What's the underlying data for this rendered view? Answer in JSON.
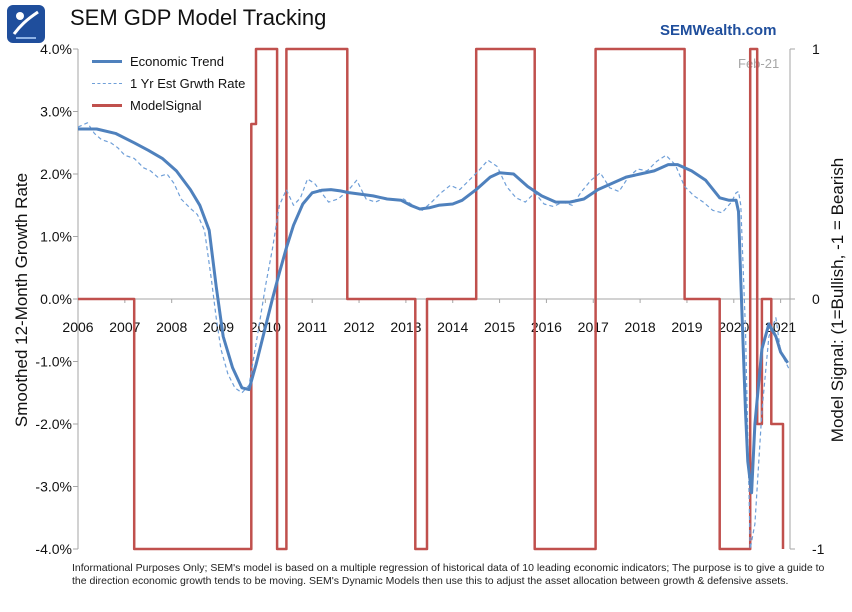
{
  "header": {
    "title": "SEM GDP Model Tracking",
    "brand": "SEMWealth.com",
    "logo": "sem-logo-icon",
    "as_of": "Feb-21"
  },
  "footnote": "Informational Purposes Only; SEM's model is based on a multiple regression of historical data of 10 leading economic indicators; The purpose is to give a guide to the direction economic growth tends to be moving. SEM's Dynamic Models then use this to adjust the asset allocation between growth & defensive assets.",
  "colors": {
    "economic_trend": "#4f81bd",
    "est_growth": "#6f9fd8",
    "model_signal": "#c0504d",
    "axis": "#a6a6a6"
  },
  "chart_data": {
    "type": "line",
    "x_tick_labels": [
      "2006",
      "2007",
      "2008",
      "2009",
      "2010",
      "2011",
      "2012",
      "2013",
      "2014",
      "2015",
      "2016",
      "2017",
      "2018",
      "2019",
      "2020",
      "2021"
    ],
    "xlim": [
      2006.0,
      2021.2
    ],
    "y_left": {
      "label": "Smoothed 12-Month Growth Rate",
      "ticks": [
        "4.0%",
        "3.0%",
        "2.0%",
        "1.0%",
        "0.0%",
        "-1.0%",
        "-2.0%",
        "-3.0%",
        "-4.0%"
      ],
      "ylim": [
        -4.0,
        4.0
      ]
    },
    "y_right": {
      "label": "Model Signal: (1=Bullish, -1 = Bearish",
      "ticks": [
        "1",
        "0",
        "-1"
      ],
      "ylim": [
        -1,
        1
      ]
    },
    "series": [
      {
        "name": "Economic Trend",
        "axis": "left",
        "style": "solid",
        "x": [
          2006.0,
          2006.4,
          2006.8,
          2007.2,
          2007.5,
          2007.8,
          2008.1,
          2008.4,
          2008.6,
          2008.8,
          2008.95,
          2009.1,
          2009.3,
          2009.5,
          2009.65,
          2009.8,
          2010.0,
          2010.15,
          2010.3,
          2010.45,
          2010.6,
          2010.8,
          2011.0,
          2011.2,
          2011.4,
          2011.6,
          2011.8,
          2012.0,
          2012.3,
          2012.6,
          2012.9,
          2013.1,
          2013.3,
          2013.5,
          2013.7,
          2014.0,
          2014.2,
          2014.5,
          2014.8,
          2015.0,
          2015.3,
          2015.6,
          2015.9,
          2016.2,
          2016.5,
          2016.8,
          2017.1,
          2017.4,
          2017.7,
          2018.0,
          2018.3,
          2018.6,
          2018.8,
          2019.1,
          2019.4,
          2019.7,
          2019.9,
          2020.05,
          2020.1,
          2020.15,
          2020.25,
          2020.3,
          2020.38,
          2020.45,
          2020.6,
          2020.75,
          2020.9,
          2021.0,
          2021.15
        ],
        "values": [
          2.72,
          2.72,
          2.65,
          2.5,
          2.38,
          2.25,
          2.05,
          1.75,
          1.5,
          1.1,
          0.2,
          -0.6,
          -1.1,
          -1.42,
          -1.45,
          -1.05,
          -0.45,
          0.0,
          0.42,
          0.82,
          1.18,
          1.52,
          1.7,
          1.74,
          1.75,
          1.73,
          1.7,
          1.68,
          1.65,
          1.6,
          1.58,
          1.5,
          1.44,
          1.46,
          1.5,
          1.52,
          1.58,
          1.75,
          1.95,
          2.02,
          2.0,
          1.8,
          1.65,
          1.55,
          1.55,
          1.6,
          1.75,
          1.85,
          1.95,
          2.0,
          2.05,
          2.15,
          2.15,
          2.05,
          1.9,
          1.62,
          1.58,
          1.58,
          1.4,
          0.3,
          -1.8,
          -2.6,
          -3.1,
          -2.0,
          -0.8,
          -0.4,
          -0.6,
          -0.85,
          -1.02
        ]
      },
      {
        "name": "1 Yr Est Grwth Rate",
        "axis": "left",
        "style": "dashed",
        "x": [
          2006.0,
          2006.2,
          2006.35,
          2006.5,
          2006.7,
          2006.85,
          2007.0,
          2007.2,
          2007.4,
          2007.55,
          2007.7,
          2007.9,
          2008.05,
          2008.2,
          2008.4,
          2008.55,
          2008.7,
          2008.85,
          2008.95,
          2009.05,
          2009.2,
          2009.35,
          2009.5,
          2009.65,
          2009.85,
          2010.0,
          2010.15,
          2010.3,
          2010.45,
          2010.6,
          2010.75,
          2010.9,
          2011.05,
          2011.2,
          2011.35,
          2011.55,
          2011.75,
          2011.95,
          2012.15,
          2012.35,
          2012.55,
          2012.75,
          2012.95,
          2013.15,
          2013.35,
          2013.55,
          2013.75,
          2013.95,
          2014.15,
          2014.35,
          2014.55,
          2014.75,
          2014.95,
          2015.15,
          2015.35,
          2015.55,
          2015.75,
          2015.95,
          2016.15,
          2016.35,
          2016.55,
          2016.75,
          2016.95,
          2017.15,
          2017.35,
          2017.55,
          2017.75,
          2017.95,
          2018.15,
          2018.35,
          2018.55,
          2018.75,
          2018.95,
          2019.15,
          2019.35,
          2019.55,
          2019.75,
          2019.95,
          2020.05,
          2020.1,
          2020.15,
          2020.25,
          2020.35,
          2020.45,
          2020.6,
          2020.75,
          2020.9,
          2021.0,
          2021.1,
          2021.2
        ],
        "values": [
          2.75,
          2.82,
          2.65,
          2.55,
          2.5,
          2.42,
          2.3,
          2.25,
          2.1,
          2.05,
          1.95,
          2.0,
          1.85,
          1.6,
          1.45,
          1.35,
          1.1,
          0.3,
          -0.3,
          -0.8,
          -1.2,
          -1.42,
          -1.5,
          -1.38,
          -0.5,
          0.2,
          0.8,
          1.5,
          1.75,
          1.5,
          1.62,
          1.92,
          1.85,
          1.7,
          1.55,
          1.6,
          1.72,
          1.9,
          1.6,
          1.55,
          1.62,
          1.58,
          1.6,
          1.5,
          1.42,
          1.55,
          1.7,
          1.82,
          1.75,
          1.9,
          2.05,
          2.22,
          2.12,
          1.8,
          1.62,
          1.55,
          1.7,
          1.52,
          1.48,
          1.55,
          1.5,
          1.72,
          1.9,
          2.02,
          1.78,
          1.72,
          1.95,
          2.08,
          2.05,
          2.2,
          2.3,
          2.15,
          1.8,
          1.65,
          1.55,
          1.42,
          1.38,
          1.55,
          1.7,
          1.72,
          1.5,
          -0.5,
          -4.0,
          -3.6,
          -1.8,
          -0.6,
          -0.3,
          -0.85,
          -1.0,
          -1.15
        ]
      },
      {
        "name": "ModelSignal",
        "axis": "right",
        "style": "solid",
        "x": [
          2006.0,
          2007.2,
          2007.2,
          2009.7,
          2009.7,
          2009.8,
          2009.8,
          2010.25,
          2010.25,
          2010.45,
          2010.45,
          2011.75,
          2011.75,
          2013.2,
          2013.2,
          2013.45,
          2013.45,
          2014.5,
          2014.5,
          2015.75,
          2015.75,
          2017.05,
          2017.05,
          2018.95,
          2018.95,
          2019.7,
          2019.7,
          2020.35,
          2020.35,
          2020.5,
          2020.5,
          2020.6,
          2020.6,
          2020.8,
          2020.8,
          2020.92,
          2020.92,
          2021.0,
          2021.0,
          2021.05,
          2021.05
        ],
        "values": [
          0,
          0,
          -1,
          -1,
          0.7,
          0.7,
          1,
          1,
          -1,
          -1,
          1,
          1,
          0,
          0,
          -1,
          -1,
          0,
          0,
          1,
          1,
          -1,
          -1,
          1,
          1,
          0,
          0,
          -1,
          -1,
          1,
          1,
          -0.5,
          -0.5,
          0,
          0,
          -0.5,
          -0.5,
          -0.5,
          -0.5,
          -0.5,
          -0.5,
          -1
        ]
      }
    ],
    "legend": "top-left",
    "grid": false
  }
}
